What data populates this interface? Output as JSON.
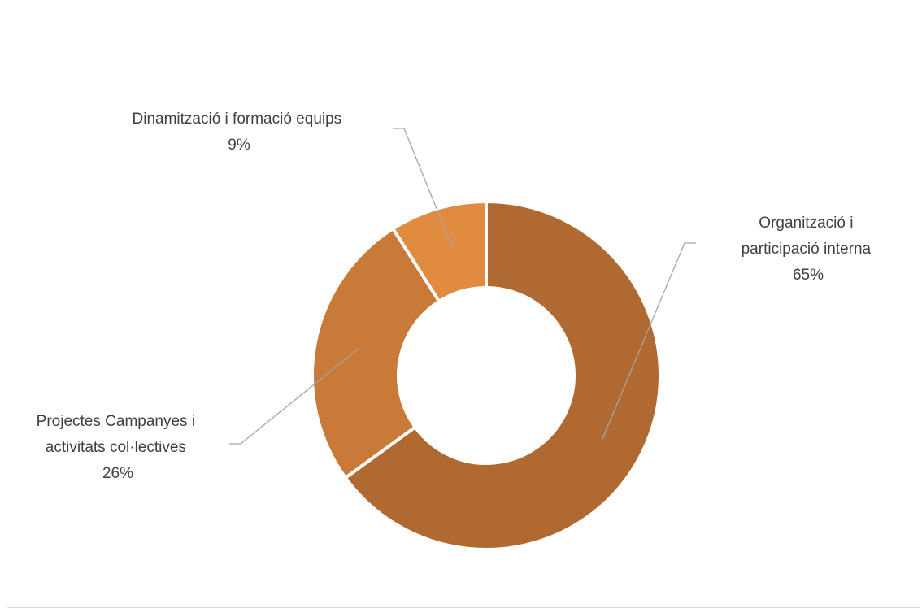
{
  "chart_data": {
    "type": "pie",
    "subtype": "donut",
    "title": "",
    "slices": [
      {
        "label_lines": [
          "Organització i",
          "participació interna"
        ],
        "value": 65,
        "value_label": "65%",
        "color": "#b06a31"
      },
      {
        "label_lines": [
          "Projectes Campanyes i",
          "activitats col·lectives"
        ],
        "value": 26,
        "value_label": "26%",
        "color": "#c97a38"
      },
      {
        "label_lines": [
          "Dinamització i formació equips"
        ],
        "value": 9,
        "value_label": "9%",
        "color": "#e08b40"
      }
    ],
    "start_angle": "12 o'clock",
    "direction": "clockwise",
    "legend": "none",
    "data_labels": "category and percentage with leader lines"
  }
}
